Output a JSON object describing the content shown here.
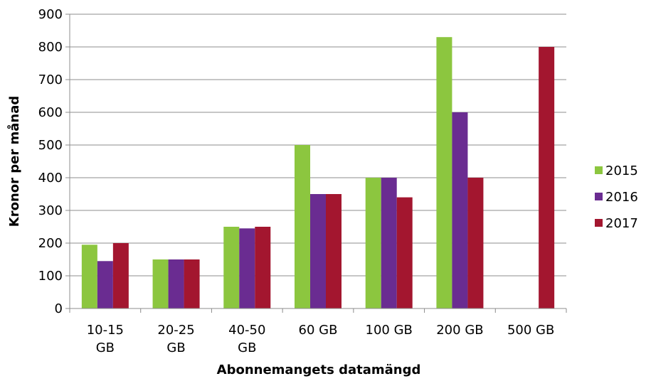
{
  "chart_data": {
    "type": "bar",
    "title": "",
    "xlabel": "Abonnemangets datamängd",
    "ylabel": "Kronor per månad",
    "ylim": [
      0,
      900
    ],
    "yticks": [
      0,
      100,
      200,
      300,
      400,
      500,
      600,
      700,
      800,
      900
    ],
    "grid": true,
    "legend_position": "right",
    "categories": [
      [
        "10-15",
        "GB"
      ],
      [
        "20-25",
        "GB"
      ],
      [
        "40-50",
        "GB"
      ],
      [
        "60 GB"
      ],
      [
        "100 GB"
      ],
      [
        "200 GB"
      ],
      [
        "500 GB"
      ]
    ],
    "series": [
      {
        "name": "2015",
        "color": "#8cc63f",
        "values": [
          195,
          150,
          250,
          500,
          400,
          830,
          null
        ]
      },
      {
        "name": "2016",
        "color": "#6a2c91",
        "values": [
          145,
          150,
          245,
          350,
          400,
          600,
          null
        ]
      },
      {
        "name": "2017",
        "color": "#a3162f",
        "values": [
          200,
          150,
          250,
          350,
          340,
          400,
          800
        ]
      }
    ]
  }
}
